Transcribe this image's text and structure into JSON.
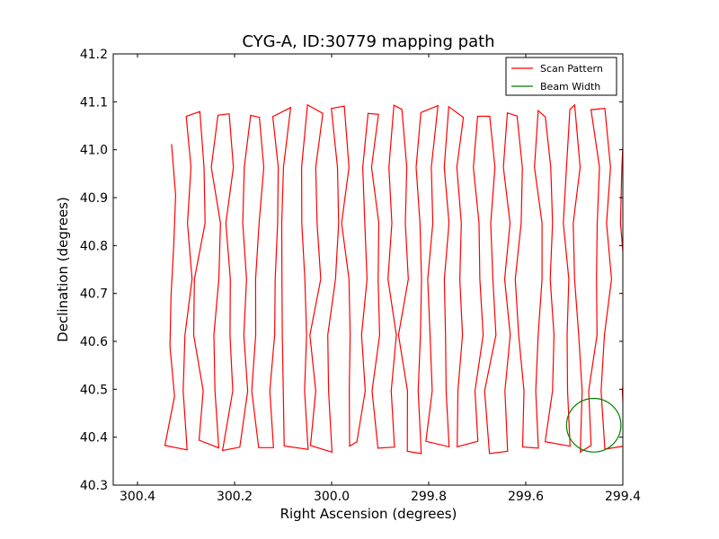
{
  "chart_data": {
    "type": "line",
    "title": "CYG-A, ID:30779 mapping path",
    "xlabel": "Right Ascension (degrees)",
    "ylabel": "Declination (degrees)",
    "xlim": [
      300.45,
      299.4
    ],
    "ylim": [
      40.3,
      41.2
    ],
    "x_reversed": true,
    "xticks": [
      "300.4",
      "300.2",
      "300.0",
      "299.8",
      "299.6",
      "299.4"
    ],
    "xtick_values": [
      300.4,
      300.2,
      300.0,
      299.8,
      299.6,
      299.4
    ],
    "yticks": [
      "40.3",
      "40.4",
      "40.5",
      "40.6",
      "40.7",
      "40.8",
      "40.9",
      "41.0",
      "41.1",
      "41.2"
    ],
    "ytick_values": [
      40.3,
      40.4,
      40.5,
      40.6,
      40.7,
      40.8,
      40.9,
      41.0,
      41.1,
      41.2
    ],
    "grid": false,
    "legend_position": "top-right",
    "series": [
      {
        "name": "Scan Pattern",
        "color": "#ff0000",
        "scan": {
          "x_start": 300.33,
          "x_end": 299.4,
          "columns": 32,
          "y_top": 41.08,
          "y_bottom": 40.38,
          "y_first": 41.01
        }
      },
      {
        "name": "Beam Width",
        "color": "#008000",
        "circle": {
          "center_ra": 299.46,
          "center_dec": 40.425,
          "radius_deg": 0.056
        }
      }
    ]
  }
}
